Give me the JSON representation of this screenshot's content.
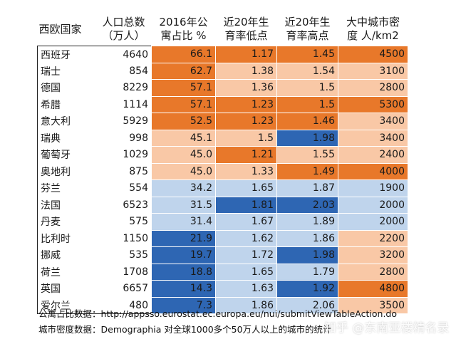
{
  "headers": [
    "西欧国家",
    "人口总数（万人）",
    "2016年公寓占比 %",
    "近20年生育率低点",
    "近20年生育率高点",
    "大中城市密度 人/km2"
  ],
  "header_lines": [
    [
      "西欧国家"
    ],
    [
      "人口总数",
      "（万人）"
    ],
    [
      "2016年公",
      "寓占比 %"
    ],
    [
      "近20年生",
      "育率低点"
    ],
    [
      "近20年生",
      "育率高点"
    ],
    [
      "大中城市密",
      "度 人/km2"
    ]
  ],
  "rows": [
    {
      "name": "西班牙",
      "pop": "4640",
      "apt": "66.1",
      "low": "1.17",
      "high": "1.45",
      "dens": "4500"
    },
    {
      "name": "瑞士",
      "pop": "854",
      "apt": "62.7",
      "low": "1.38",
      "high": "1.54",
      "dens": "3100"
    },
    {
      "name": "德国",
      "pop": "8229",
      "apt": "57.1",
      "low": "1.36",
      "high": "1.5",
      "dens": "2800"
    },
    {
      "name": "希腊",
      "pop": "1114",
      "apt": "57.1",
      "low": "1.23",
      "high": "1.5",
      "dens": "5300"
    },
    {
      "name": "意大利",
      "pop": "5929",
      "apt": "52.5",
      "low": "1.23",
      "high": "1.46",
      "dens": "3400"
    },
    {
      "name": "瑞典",
      "pop": "998",
      "apt": "45.1",
      "low": "1.5",
      "high": "1.98",
      "dens": "3400"
    },
    {
      "name": "葡萄牙",
      "pop": "1029",
      "apt": "45.0",
      "low": "1.21",
      "high": "1.55",
      "dens": "2400"
    },
    {
      "name": "奥地利",
      "pop": "875",
      "apt": "45.0",
      "low": "1.33",
      "high": "1.49",
      "dens": "4000"
    },
    {
      "name": "芬兰",
      "pop": "554",
      "apt": "34.2",
      "low": "1.65",
      "high": "1.87",
      "dens": "1900"
    },
    {
      "name": "法国",
      "pop": "6523",
      "apt": "31.5",
      "low": "1.81",
      "high": "2.03",
      "dens": "2000"
    },
    {
      "name": "丹麦",
      "pop": "575",
      "apt": "31.4",
      "low": "1.67",
      "high": "1.89",
      "dens": "2000"
    },
    {
      "name": "比利时",
      "pop": "1150",
      "apt": "21.9",
      "low": "1.62",
      "high": "1.86",
      "dens": "2200"
    },
    {
      "name": "挪威",
      "pop": "535",
      "apt": "19.7",
      "low": "1.72",
      "high": "1.98",
      "dens": "3200"
    },
    {
      "name": "荷兰",
      "pop": "1708",
      "apt": "18.8",
      "low": "1.65",
      "high": "1.79",
      "dens": "2800"
    },
    {
      "name": "英国",
      "pop": "6657",
      "apt": "14.3",
      "low": "1.63",
      "high": "1.92",
      "dens": "4800"
    },
    {
      "name": "爱尔兰",
      "pop": "480",
      "apt": "7.3",
      "low": "1.86",
      "high": "2.06",
      "dens": "3500"
    }
  ],
  "cell_shades": [
    [
      "o",
      "o",
      "o",
      "o"
    ],
    [
      "o",
      "p",
      "p",
      "p"
    ],
    [
      "o",
      "p",
      "p",
      "p"
    ],
    [
      "o",
      "o",
      "o",
      "o"
    ],
    [
      "o",
      "o",
      "o",
      "p"
    ],
    [
      "p",
      "p",
      "d",
      "p"
    ],
    [
      "p",
      "o",
      "p",
      "p"
    ],
    [
      "p",
      "p",
      "o",
      "o"
    ],
    [
      "l",
      "l",
      "l",
      "l"
    ],
    [
      "l",
      "d",
      "d",
      "l"
    ],
    [
      "l",
      "l",
      "l",
      "l"
    ],
    [
      "d",
      "l",
      "l",
      "p"
    ],
    [
      "d",
      "l",
      "d",
      "p"
    ],
    [
      "d",
      "l",
      "l",
      "p"
    ],
    [
      "d",
      "l",
      "d",
      "o"
    ],
    [
      "d",
      "l",
      "l",
      "p"
    ]
  ],
  "shade_colors": {
    "o": "#e8782a",
    "p": "#f9c8a6",
    "l": "#bfd4ec",
    "d": "#2e66b3"
  },
  "notes": {
    "apt_source": "公寓占比数据：http://appsso.eurostat.ec.europa.eu/nui/submitViewTableAction.do",
    "density_source": "城市密度数据：Demographia 对全球1000多个50万人以上的城市的统计"
  },
  "watermark": "知乎 @东南亚楼精名录"
}
